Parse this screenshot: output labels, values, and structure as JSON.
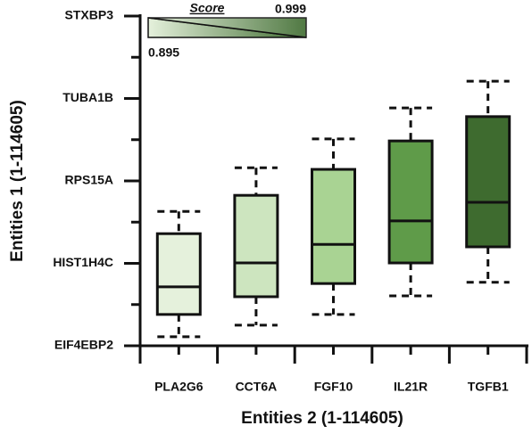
{
  "chart_data": {
    "type": "box",
    "x_label": "Entities 2 (1-114605)",
    "y_label": "Entities 1 (1-114605)",
    "categories": [
      "PLA2G6",
      "CCT6A",
      "FGF10",
      "IL21R",
      "TGFB1"
    ],
    "boxes": [
      {
        "min": 0.22,
        "q1": 0.76,
        "median": 1.43,
        "q3": 2.72,
        "max": 3.26
      },
      {
        "min": 0.5,
        "q1": 1.19,
        "median": 2.01,
        "q3": 3.65,
        "max": 4.32
      },
      {
        "min": 0.76,
        "q1": 1.51,
        "median": 2.46,
        "q3": 4.28,
        "max": 5.02
      },
      {
        "min": 1.21,
        "q1": 2.01,
        "median": 3.03,
        "q3": 4.97,
        "max": 5.77
      },
      {
        "min": 1.54,
        "q1": 2.4,
        "median": 3.48,
        "q3": 5.56,
        "max": 6.42
      }
    ],
    "colors": [
      "#e5f1dc",
      "#cde5bf",
      "#a9d393",
      "#5f9b49",
      "#3e6b2f"
    ],
    "ylim": [
      0,
      8
    ],
    "yticks": [
      {
        "value": 0,
        "label": "EIF4EBP2"
      },
      {
        "value": 2,
        "label": "HIST1H4C"
      },
      {
        "value": 4,
        "label": "RPS15A"
      },
      {
        "value": 6,
        "label": "TUBA1B"
      },
      {
        "value": 8,
        "label": "STXBP3"
      }
    ],
    "yminorticks": [
      1,
      3,
      5,
      7
    ],
    "legend": {
      "title": "Score",
      "min": 0.895,
      "max": 0.999,
      "min_color": "#e5f1dc",
      "max_color": "#3e6b2f"
    }
  }
}
